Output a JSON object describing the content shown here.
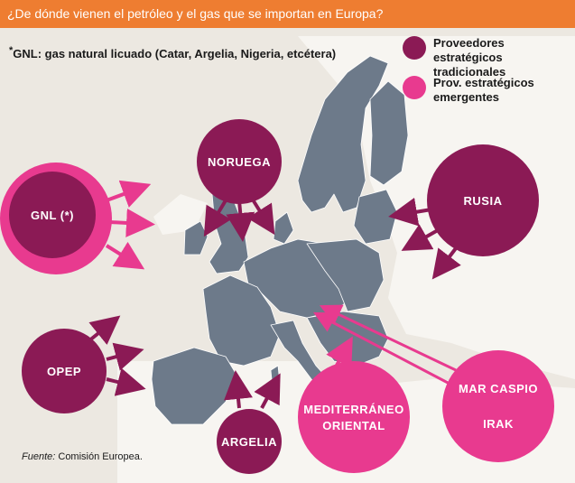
{
  "header": {
    "title": "¿De dónde vienen el petróleo y el gas que se importan en Europa?"
  },
  "note": {
    "asterisk": "*",
    "text": "GNL: gas natural licuado (Catar, Argelia, Nigeria, etcétera)"
  },
  "legend": {
    "traditional": {
      "line1": "Proveedores estratégicos",
      "line2": "tradicionales",
      "color": "#8b1a55"
    },
    "emerging": {
      "line1": "Prov. estratégicos",
      "line2": "emergentes",
      "color": "#e83a8f"
    }
  },
  "suppliers": {
    "noruega": "NORUEGA",
    "rusia": "RUSIA",
    "gnl": "GNL (*)",
    "opep": "OPEP",
    "argelia": "ARGELIA",
    "mediterraneo_line1": "MEDITERRÁNEO",
    "mediterraneo_line2": "ORIENTAL",
    "caspio": "MAR CASPIO",
    "irak": "IRAK"
  },
  "colors": {
    "traditional": "#8b1a55",
    "emerging": "#e83a8f",
    "header": "#ee7d31",
    "map_land": "#6d7a8a",
    "background_land": "#ffffff",
    "sea": "#ece8e1"
  },
  "source": {
    "label": "Fuente:",
    "text": " Comisión Europea."
  }
}
